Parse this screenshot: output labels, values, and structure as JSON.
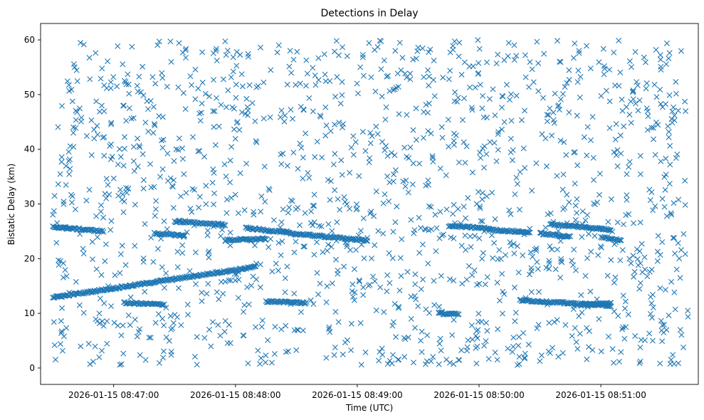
{
  "chart_data": {
    "type": "scatter",
    "title": "Detections in Delay",
    "xlabel": "Time (UTC)",
    "ylabel": "Bistatic Delay (km)",
    "marker": "x",
    "color": "#1f77b4",
    "grid": false,
    "x_ticks": [
      "2026-01-15 08:47:00",
      "2026-01-15 08:48:00",
      "2026-01-15 08:49:00",
      "2026-01-15 08:50:00",
      "2026-01-15 08:51:00"
    ],
    "y_ticks": [
      0,
      10,
      20,
      30,
      40,
      50,
      60
    ],
    "xlim": [
      "2026-01-15 08:46:24",
      "2026-01-15 08:51:48"
    ],
    "ylim": [
      -3,
      63
    ],
    "x_range_seconds_into_minute_window": null,
    "tracks": [
      {
        "from": [
          "2026-01-15 08:46:30",
          12.9
        ],
        "to": [
          "2026-01-15 08:48:10",
          18.5
        ]
      },
      {
        "from": [
          "2026-01-15 08:46:30",
          25.8
        ],
        "to": [
          "2026-01-15 08:46:55",
          25.0
        ]
      },
      {
        "from": [
          "2026-01-15 08:47:20",
          24.6
        ],
        "to": [
          "2026-01-15 08:47:35",
          24.2
        ]
      },
      {
        "from": [
          "2026-01-15 08:47:30",
          26.8
        ],
        "to": [
          "2026-01-15 08:47:55",
          26.2
        ]
      },
      {
        "from": [
          "2026-01-15 08:47:55",
          23.4
        ],
        "to": [
          "2026-01-15 08:48:15",
          23.6
        ]
      },
      {
        "from": [
          "2026-01-15 08:48:05",
          25.6
        ],
        "to": [
          "2026-01-15 08:48:25",
          24.8
        ]
      },
      {
        "from": [
          "2026-01-15 08:48:25",
          24.7
        ],
        "to": [
          "2026-01-15 08:49:05",
          23.3
        ]
      },
      {
        "from": [
          "2026-01-15 08:48:15",
          12.2
        ],
        "to": [
          "2026-01-15 08:48:35",
          11.9
        ]
      },
      {
        "from": [
          "2026-01-15 08:47:05",
          11.9
        ],
        "to": [
          "2026-01-15 08:47:25",
          11.6
        ]
      },
      {
        "from": [
          "2026-01-15 08:49:45",
          26.0
        ],
        "to": [
          "2026-01-15 08:50:05",
          25.5
        ]
      },
      {
        "from": [
          "2026-01-15 08:50:05",
          25.3
        ],
        "to": [
          "2026-01-15 08:50:25",
          24.8
        ]
      },
      {
        "from": [
          "2026-01-15 08:50:30",
          24.6
        ],
        "to": [
          "2026-01-15 08:50:45",
          24.0
        ]
      },
      {
        "from": [
          "2026-01-15 08:50:35",
          26.3
        ],
        "to": [
          "2026-01-15 08:51:05",
          25.3
        ]
      },
      {
        "from": [
          "2026-01-15 08:51:00",
          24.0
        ],
        "to": [
          "2026-01-15 08:51:10",
          23.3
        ]
      },
      {
        "from": [
          "2026-01-15 08:50:20",
          12.4
        ],
        "to": [
          "2026-01-15 08:51:05",
          11.4
        ]
      },
      {
        "from": [
          "2026-01-15 08:50:50",
          11.5
        ],
        "to": [
          "2026-01-15 08:51:05",
          11.9
        ]
      },
      {
        "from": [
          "2026-01-15 08:49:40",
          10.0
        ],
        "to": [
          "2026-01-15 08:49:50",
          9.8
        ]
      }
    ],
    "background_scatter": {
      "x_range": [
        "2026-01-15 08:46:30",
        "2026-01-15 08:51:43"
      ],
      "y_range": [
        0.5,
        60
      ],
      "approx_count": 1500
    }
  }
}
